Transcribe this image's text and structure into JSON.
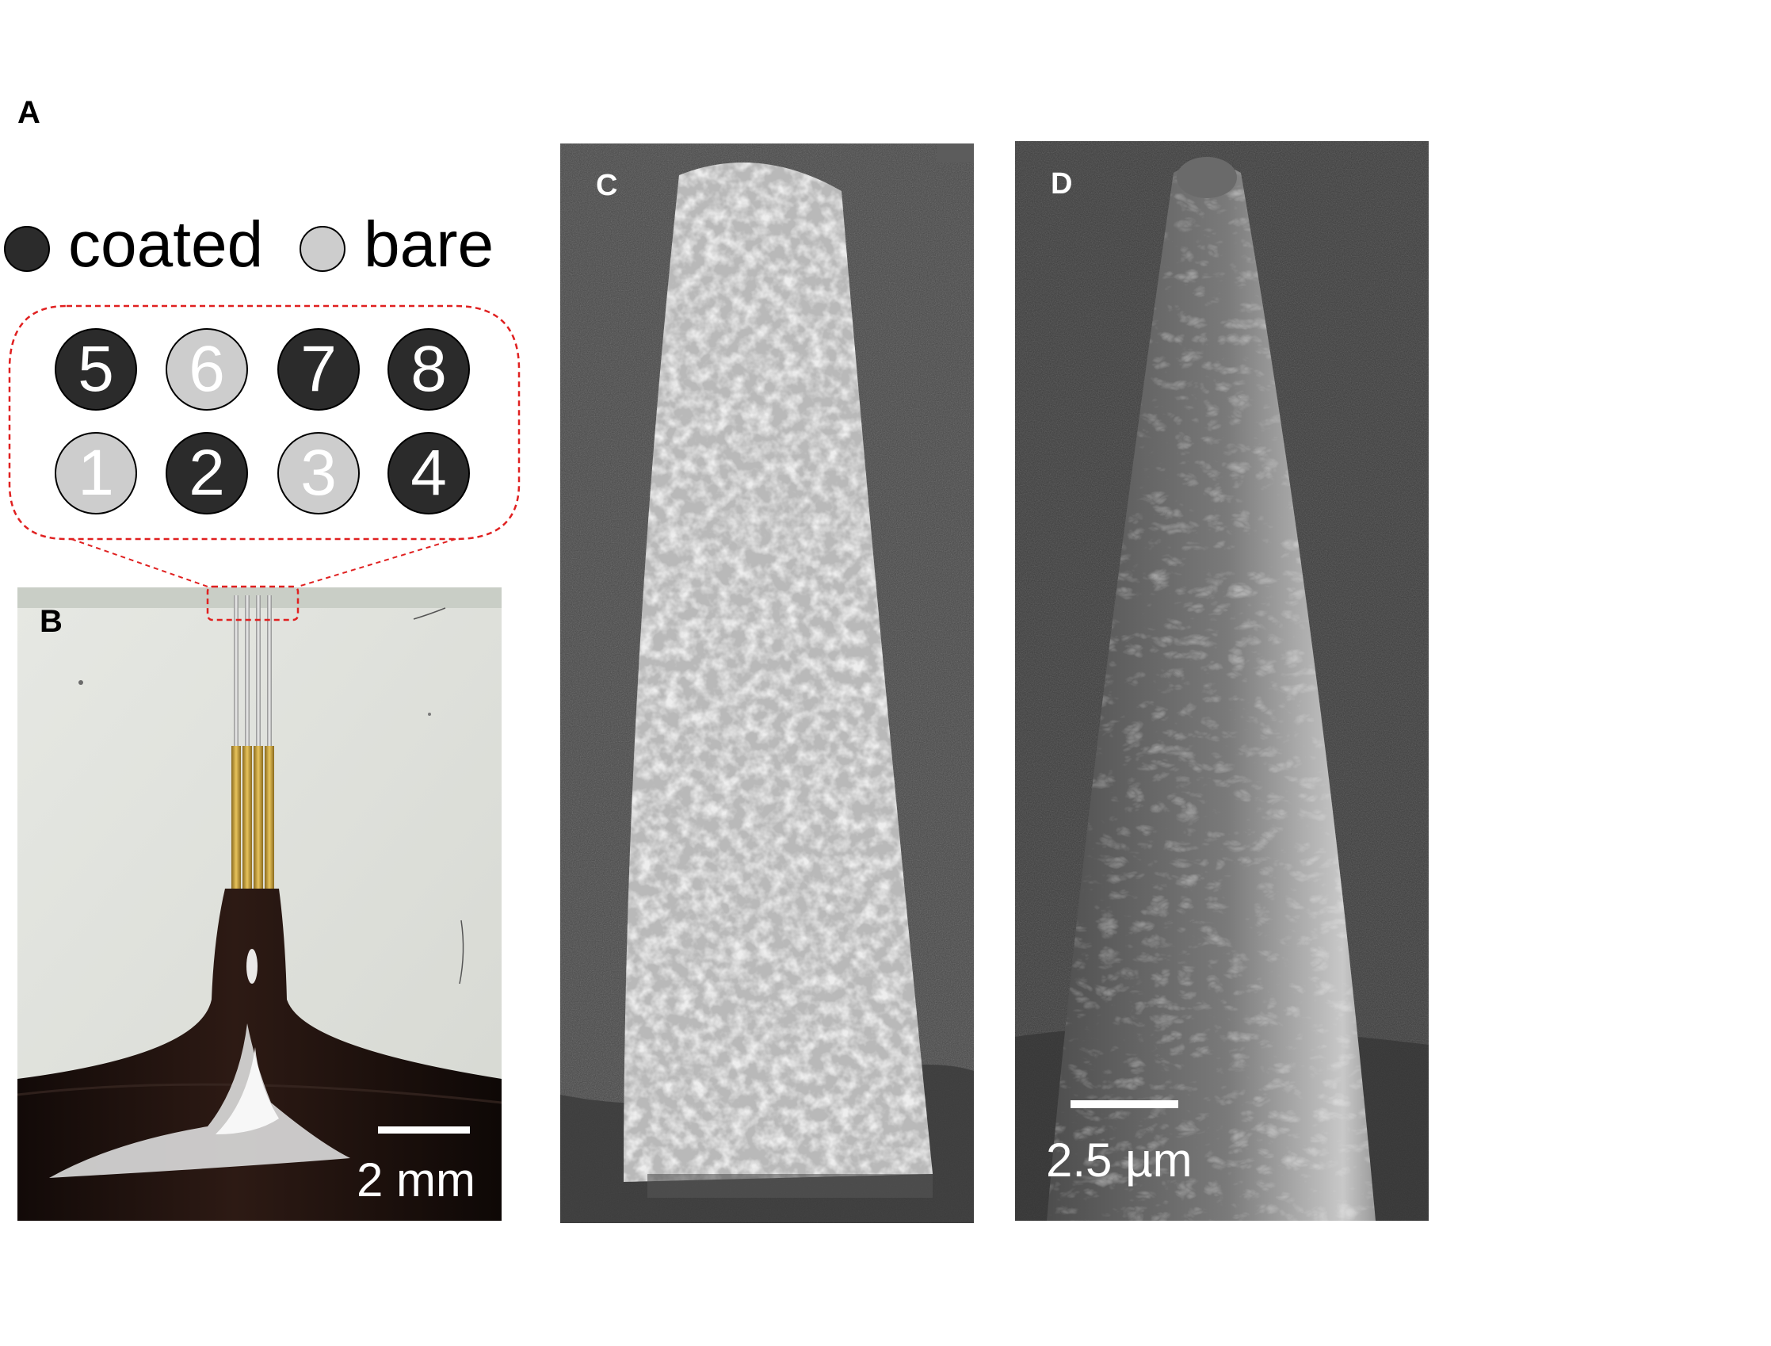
{
  "panels": {
    "a": {
      "label": "A"
    },
    "b": {
      "label": "B"
    },
    "c": {
      "label": "C"
    },
    "d": {
      "label": "D"
    }
  },
  "legend": {
    "coated_label": "coated",
    "bare_label": "bare"
  },
  "electrodes": {
    "top_row": [
      {
        "number": "5",
        "state": "coated"
      },
      {
        "number": "6",
        "state": "bare"
      },
      {
        "number": "7",
        "state": "coated"
      },
      {
        "number": "8",
        "state": "coated"
      }
    ],
    "bottom_row": [
      {
        "number": "1",
        "state": "bare"
      },
      {
        "number": "2",
        "state": "coated"
      },
      {
        "number": "3",
        "state": "bare"
      },
      {
        "number": "4",
        "state": "coated"
      }
    ]
  },
  "scale_bars": {
    "photo": "2 mm",
    "sem": "2.5 µm"
  },
  "colors": {
    "coated": "#2b2b2b",
    "bare": "#cdcdcd",
    "callout": "#e02020"
  }
}
